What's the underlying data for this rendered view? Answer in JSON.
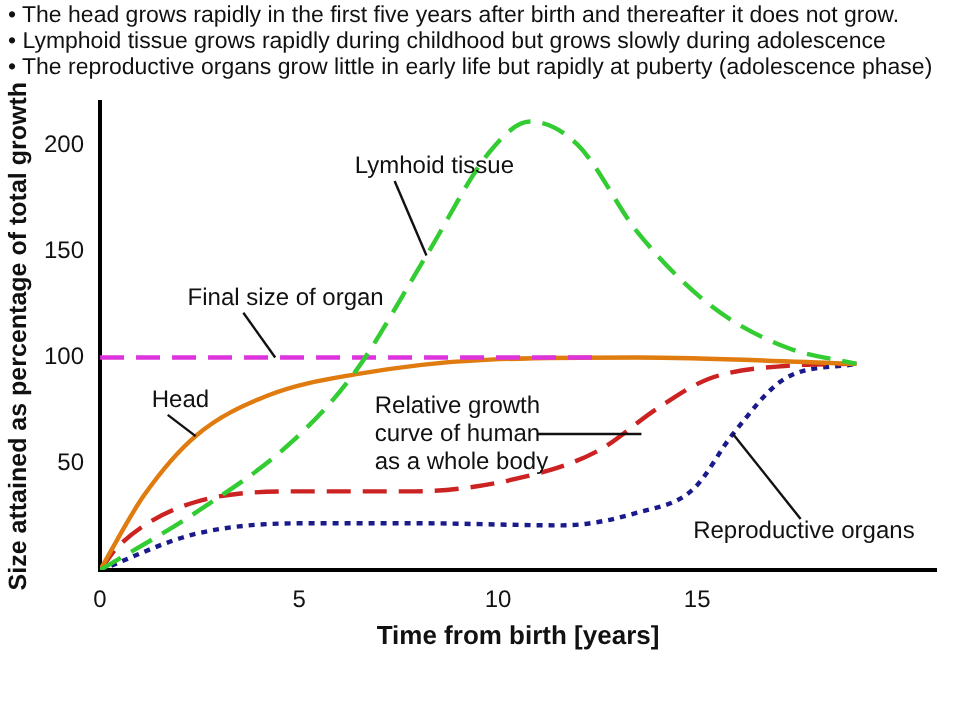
{
  "chart_data": {
    "type": "line",
    "annotations": [
      "• The head grows rapidly in the first five years after birth and thereafter it does not grow.",
      "• Lymphoid tissue grows rapidly during childhood but grows slowly during adolescence",
      "• The reproductive organs grow little in early life but rapidly at puberty (adolescence phase)"
    ],
    "xlabel": "Time from birth [years]",
    "ylabel": "Size attained as percentage of total growth",
    "xlim": [
      0,
      21
    ],
    "ylim": [
      0,
      220
    ],
    "xticks": [
      0,
      5,
      10,
      15
    ],
    "yticks": [
      50,
      100,
      150,
      200
    ],
    "grid": false,
    "legend": false,
    "marker": "none",
    "series": [
      {
        "name": "Lymhoid tissue",
        "color": "#33cc33",
        "line_style": "dashed",
        "x": [
          0,
          2.4,
          4.8,
          6.4,
          8.2,
          9.8,
          10.8,
          12,
          13.5,
          15.3,
          17.2,
          19
        ],
        "values": [
          0,
          27,
          60,
          93,
          148,
          197,
          211,
          200,
          159,
          125,
          105,
          97
        ]
      },
      {
        "name": "Final size of organ",
        "color": "#dd33dd",
        "line_style": "dashed",
        "x": [
          0,
          12.4
        ],
        "values": [
          100,
          100
        ]
      },
      {
        "name": "Head",
        "color": "#e07b10",
        "line_style": "solid",
        "x": [
          0,
          1.1,
          2.4,
          4.2,
          6.4,
          9.8,
          13.5,
          19
        ],
        "values": [
          0,
          35,
          63,
          82,
          92,
          99,
          100,
          97
        ]
      },
      {
        "name": "Relative growth curve of human as a whole body",
        "color": "#cc2222",
        "line_style": "dashed",
        "x": [
          0,
          0.5,
          2.4,
          5.1,
          7.9,
          10.7,
          12.5,
          14,
          15.3,
          17.2,
          19
        ],
        "values": [
          0,
          12,
          32,
          37,
          37,
          44,
          56,
          76,
          90,
          96,
          97
        ]
      },
      {
        "name": "Reproductive organs",
        "color": "#1a1a8c",
        "line_style": "dotted",
        "x": [
          0,
          2.4,
          5.1,
          7.9,
          11.6,
          13.5,
          14.9,
          15.9,
          17.2,
          19
        ],
        "values": [
          0,
          17,
          22,
          22,
          21,
          27,
          38,
          64,
          90,
          97
        ]
      }
    ]
  }
}
